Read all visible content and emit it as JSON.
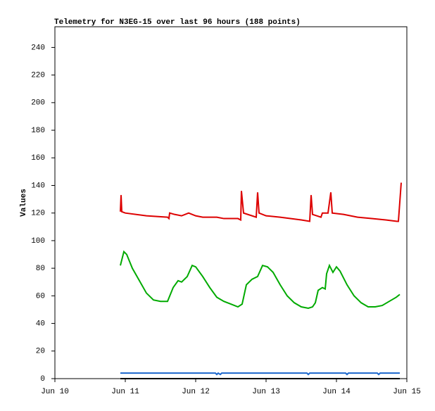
{
  "chart_data": {
    "type": "line",
    "title": "Telemetry for N3EG-15 over last 96 hours (188 points)",
    "y_label": "Values",
    "xlim": [
      0,
      5
    ],
    "xticks": [
      {
        "value": 0,
        "label": "Jun 10"
      },
      {
        "value": 1,
        "label": "Jun 11"
      },
      {
        "value": 2,
        "label": "Jun 12"
      },
      {
        "value": 3,
        "label": "Jun 13"
      },
      {
        "value": 4,
        "label": "Jun 14"
      },
      {
        "value": 5,
        "label": "Jun 15"
      }
    ],
    "ylim": [
      0,
      255
    ],
    "yticks": [
      0,
      20,
      40,
      60,
      80,
      100,
      120,
      140,
      160,
      180,
      200,
      220,
      240
    ],
    "series": [
      {
        "color": "#dd0000",
        "x": [
          0.93,
          0.94,
          0.95,
          1.0,
          1.3,
          1.6,
          1.62,
          1.63,
          1.7,
          1.8,
          1.9,
          2.0,
          2.1,
          2.3,
          2.4,
          2.6,
          2.64,
          2.65,
          2.68,
          2.8,
          2.86,
          2.88,
          2.9,
          3.0,
          3.2,
          3.5,
          3.62,
          3.64,
          3.66,
          3.78,
          3.8,
          3.88,
          3.92,
          3.94,
          4.1,
          4.3,
          4.5,
          4.7,
          4.86,
          4.88,
          4.92
        ],
        "values": [
          121,
          133,
          121,
          120,
          118,
          117,
          116,
          120,
          119,
          118,
          120,
          118,
          117,
          117,
          116,
          116,
          115,
          136,
          120,
          118,
          117,
          135,
          120,
          118,
          117,
          115,
          114,
          133,
          119,
          117,
          120,
          120,
          135,
          120,
          119,
          117,
          116,
          115,
          114,
          114,
          142
        ]
      },
      {
        "color": "#00aa00",
        "x": [
          0.93,
          0.98,
          1.02,
          1.1,
          1.2,
          1.3,
          1.4,
          1.5,
          1.6,
          1.68,
          1.75,
          1.8,
          1.88,
          1.95,
          2.0,
          2.1,
          2.2,
          2.3,
          2.4,
          2.5,
          2.6,
          2.66,
          2.72,
          2.8,
          2.88,
          2.95,
          3.02,
          3.1,
          3.2,
          3.3,
          3.4,
          3.5,
          3.6,
          3.66,
          3.7,
          3.74,
          3.8,
          3.84,
          3.86,
          3.9,
          3.95,
          4.0,
          4.05,
          4.15,
          4.25,
          4.35,
          4.45,
          4.55,
          4.65,
          4.75,
          4.85,
          4.9
        ],
        "values": [
          82,
          92,
          90,
          80,
          71,
          62,
          57,
          56,
          56,
          66,
          71,
          70,
          74,
          82,
          81,
          74,
          66,
          59,
          56,
          54,
          52,
          54,
          68,
          72,
          74,
          82,
          81,
          77,
          68,
          60,
          55,
          52,
          51,
          52,
          55,
          64,
          66,
          65,
          76,
          82,
          77,
          81,
          78,
          68,
          60,
          55,
          52,
          52,
          53,
          56,
          59,
          61
        ]
      },
      {
        "color": "#1a66cc",
        "x": [
          0.93,
          2.28,
          2.3,
          2.32,
          2.35,
          2.37,
          3.58,
          3.6,
          3.62,
          4.13,
          4.15,
          4.17,
          4.58,
          4.6,
          4.62,
          4.9
        ],
        "values": [
          4,
          4,
          3,
          4,
          3,
          4,
          4,
          3,
          4,
          4,
          3,
          4,
          4,
          3,
          4,
          4
        ]
      },
      {
        "color": "#000000",
        "x": [
          0.93,
          4.9
        ],
        "values": [
          0,
          0
        ]
      }
    ]
  }
}
